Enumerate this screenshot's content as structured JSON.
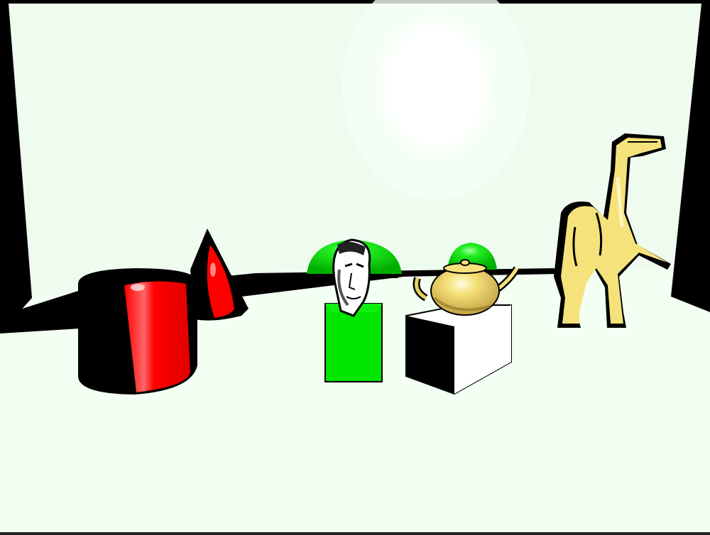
{
  "scene": {
    "colors": {
      "background": "#eefbee",
      "floor": "#f2fff2",
      "shadow": "#000000",
      "light": "#ffffff",
      "red": "#ff0000",
      "green": "#00e600",
      "yellow": "#f5e27a",
      "cube_white": "#ffffff"
    },
    "objects": [
      "area-light",
      "red-cylinder",
      "red-cone",
      "green-dome",
      "bust-head",
      "green-cube-pedestal",
      "teapot",
      "white-cube-pedestal",
      "dinosaur"
    ]
  }
}
